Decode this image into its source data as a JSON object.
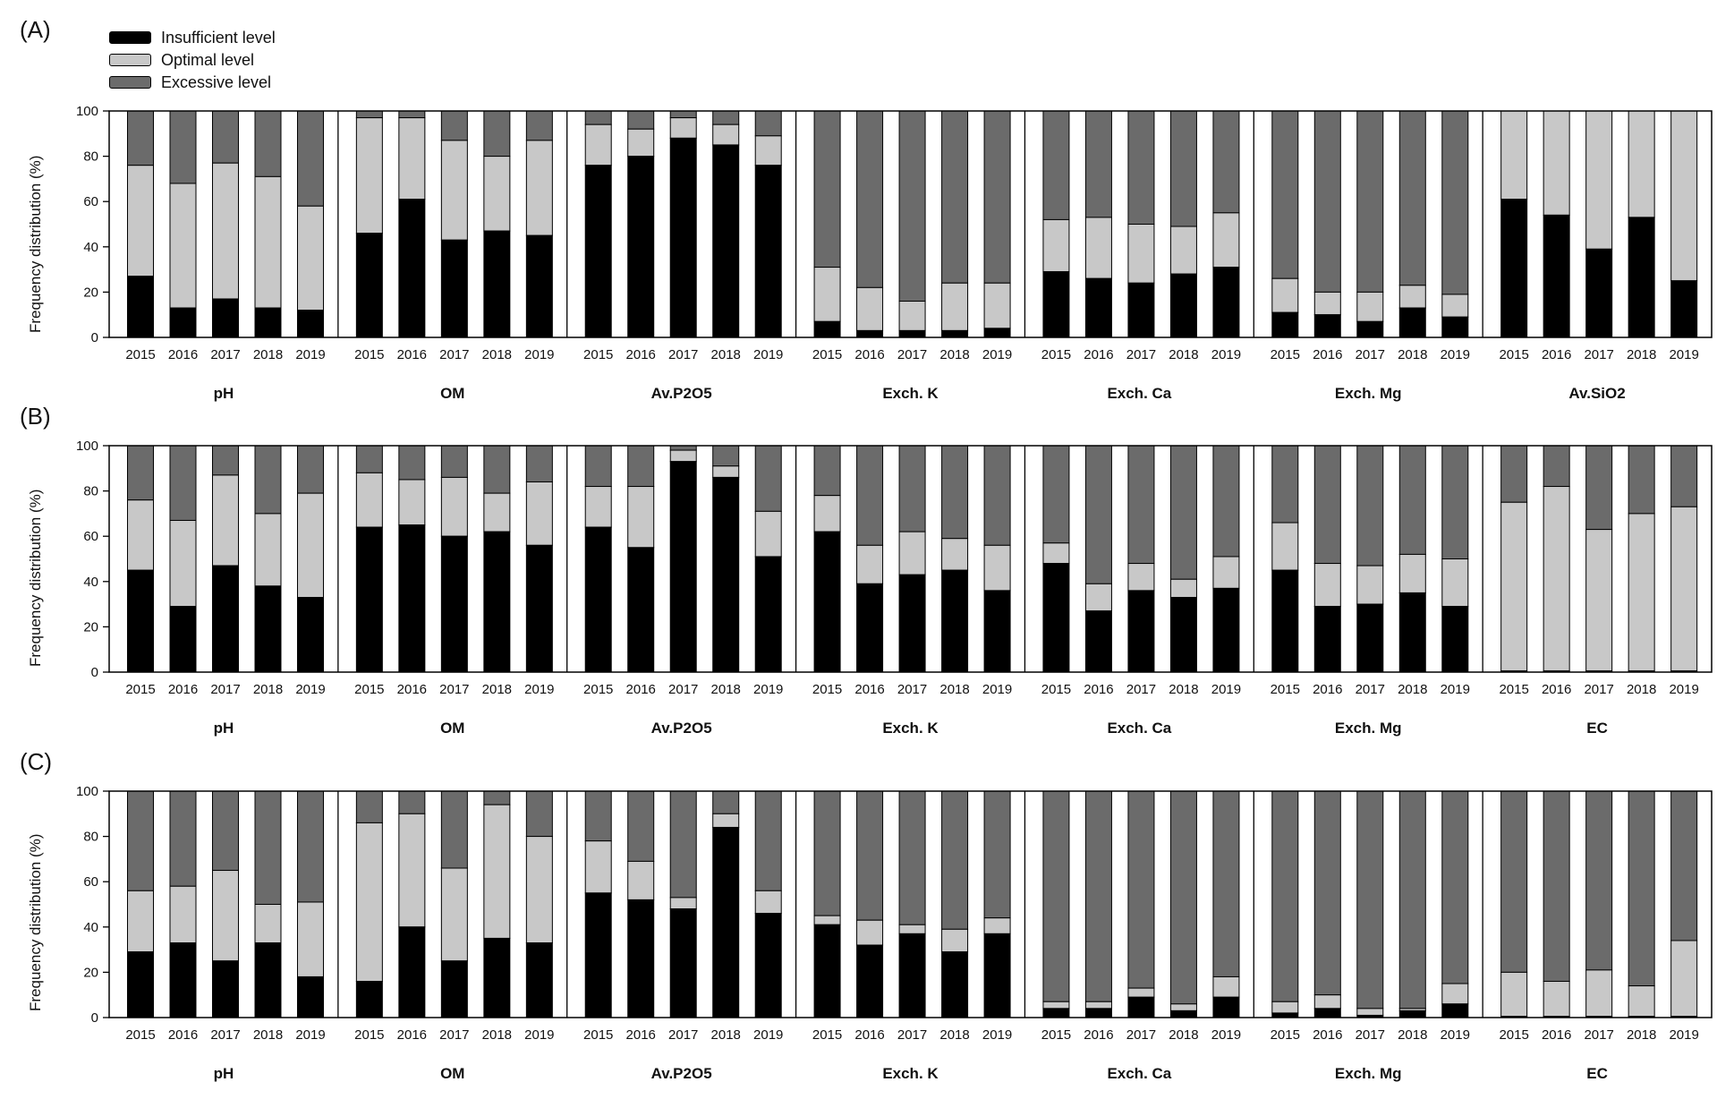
{
  "chart_data": {
    "type": "bar",
    "stacked": true,
    "ylim": [
      0,
      100
    ],
    "yticks": [
      "0",
      "20",
      "40",
      "60",
      "80",
      "100"
    ],
    "ylabel": "Frequency distribution (%)",
    "legend": {
      "placement": "top-left",
      "items": [
        {
          "label": "Insufficient level",
          "color": "#000000"
        },
        {
          "label": "Optimal level",
          "color": "#c8c8c8"
        },
        {
          "label": "Excessive level",
          "color": "#6b6b6b"
        }
      ]
    },
    "years": [
      "2015",
      "2016",
      "2017",
      "2018",
      "2019"
    ],
    "panels": [
      {
        "label": "(A)",
        "groups": [
          {
            "name": "pH",
            "insufficient": [
              27,
              13,
              17,
              13,
              12
            ],
            "optimal_upper": [
              76,
              68,
              77,
              71,
              58
            ]
          },
          {
            "name": "OM",
            "insufficient": [
              46,
              61,
              43,
              47,
              45
            ],
            "optimal_upper": [
              97,
              97,
              87,
              80,
              87
            ]
          },
          {
            "name": "Av.P2O5",
            "insufficient": [
              76,
              80,
              88,
              85,
              76
            ],
            "optimal_upper": [
              94,
              92,
              97,
              94,
              89
            ]
          },
          {
            "name": "Exch. K",
            "insufficient": [
              7,
              3,
              3,
              3,
              4
            ],
            "optimal_upper": [
              31,
              22,
              16,
              24,
              24
            ]
          },
          {
            "name": "Exch. Ca",
            "insufficient": [
              29,
              26,
              24,
              28,
              31
            ],
            "optimal_upper": [
              52,
              53,
              50,
              49,
              55
            ]
          },
          {
            "name": "Exch. Mg",
            "insufficient": [
              11,
              10,
              7,
              13,
              9
            ],
            "optimal_upper": [
              26,
              20,
              20,
              23,
              19
            ]
          },
          {
            "name": "Av.SiO2",
            "insufficient": [
              61,
              54,
              39,
              53,
              25
            ],
            "optimal_upper": [
              100,
              100,
              100,
              100,
              100
            ]
          }
        ]
      },
      {
        "label": "(B)",
        "groups": [
          {
            "name": "pH",
            "insufficient": [
              45,
              29,
              47,
              38,
              33
            ],
            "optimal_upper": [
              76,
              67,
              87,
              70,
              79
            ]
          },
          {
            "name": "OM",
            "insufficient": [
              64,
              65,
              60,
              62,
              56
            ],
            "optimal_upper": [
              88,
              85,
              86,
              79,
              84
            ]
          },
          {
            "name": "Av.P2O5",
            "insufficient": [
              64,
              55,
              93,
              86,
              51
            ],
            "optimal_upper": [
              82,
              82,
              98,
              91,
              71
            ]
          },
          {
            "name": "Exch. K",
            "insufficient": [
              62,
              39,
              43,
              45,
              36
            ],
            "optimal_upper": [
              78,
              56,
              62,
              59,
              56
            ]
          },
          {
            "name": "Exch. Ca",
            "insufficient": [
              48,
              27,
              36,
              33,
              37
            ],
            "optimal_upper": [
              57,
              39,
              48,
              41,
              51
            ]
          },
          {
            "name": "Exch. Mg",
            "insufficient": [
              45,
              29,
              30,
              35,
              29
            ],
            "optimal_upper": [
              66,
              48,
              47,
              52,
              50
            ]
          },
          {
            "name": "EC",
            "insufficient": [
              0.5,
              0.5,
              0.5,
              0.5,
              0.5
            ],
            "optimal_upper": [
              75,
              82,
              63,
              70,
              73
            ]
          }
        ]
      },
      {
        "label": "(C)",
        "groups": [
          {
            "name": "pH",
            "insufficient": [
              29,
              33,
              25,
              33,
              18
            ],
            "optimal_upper": [
              56,
              58,
              65,
              50,
              51
            ]
          },
          {
            "name": "OM",
            "insufficient": [
              16,
              40,
              25,
              35,
              33
            ],
            "optimal_upper": [
              86,
              90,
              66,
              94,
              80
            ]
          },
          {
            "name": "Av.P2O5",
            "insufficient": [
              55,
              52,
              48,
              84,
              46
            ],
            "optimal_upper": [
              78,
              69,
              53,
              90,
              56
            ]
          },
          {
            "name": "Exch. K",
            "insufficient": [
              41,
              32,
              37,
              29,
              37
            ],
            "optimal_upper": [
              45,
              43,
              41,
              39,
              44
            ]
          },
          {
            "name": "Exch. Ca",
            "insufficient": [
              4,
              4,
              9,
              3,
              9
            ],
            "optimal_upper": [
              7,
              7,
              13,
              6,
              18
            ]
          },
          {
            "name": "Exch. Mg",
            "insufficient": [
              2,
              4,
              1,
              3,
              6
            ],
            "optimal_upper": [
              7,
              10,
              4,
              4,
              15
            ]
          },
          {
            "name": "EC",
            "insufficient": [
              0.5,
              0.5,
              0.5,
              0.5,
              0.5
            ],
            "optimal_upper": [
              20,
              16,
              21,
              14,
              34
            ]
          }
        ]
      }
    ]
  }
}
